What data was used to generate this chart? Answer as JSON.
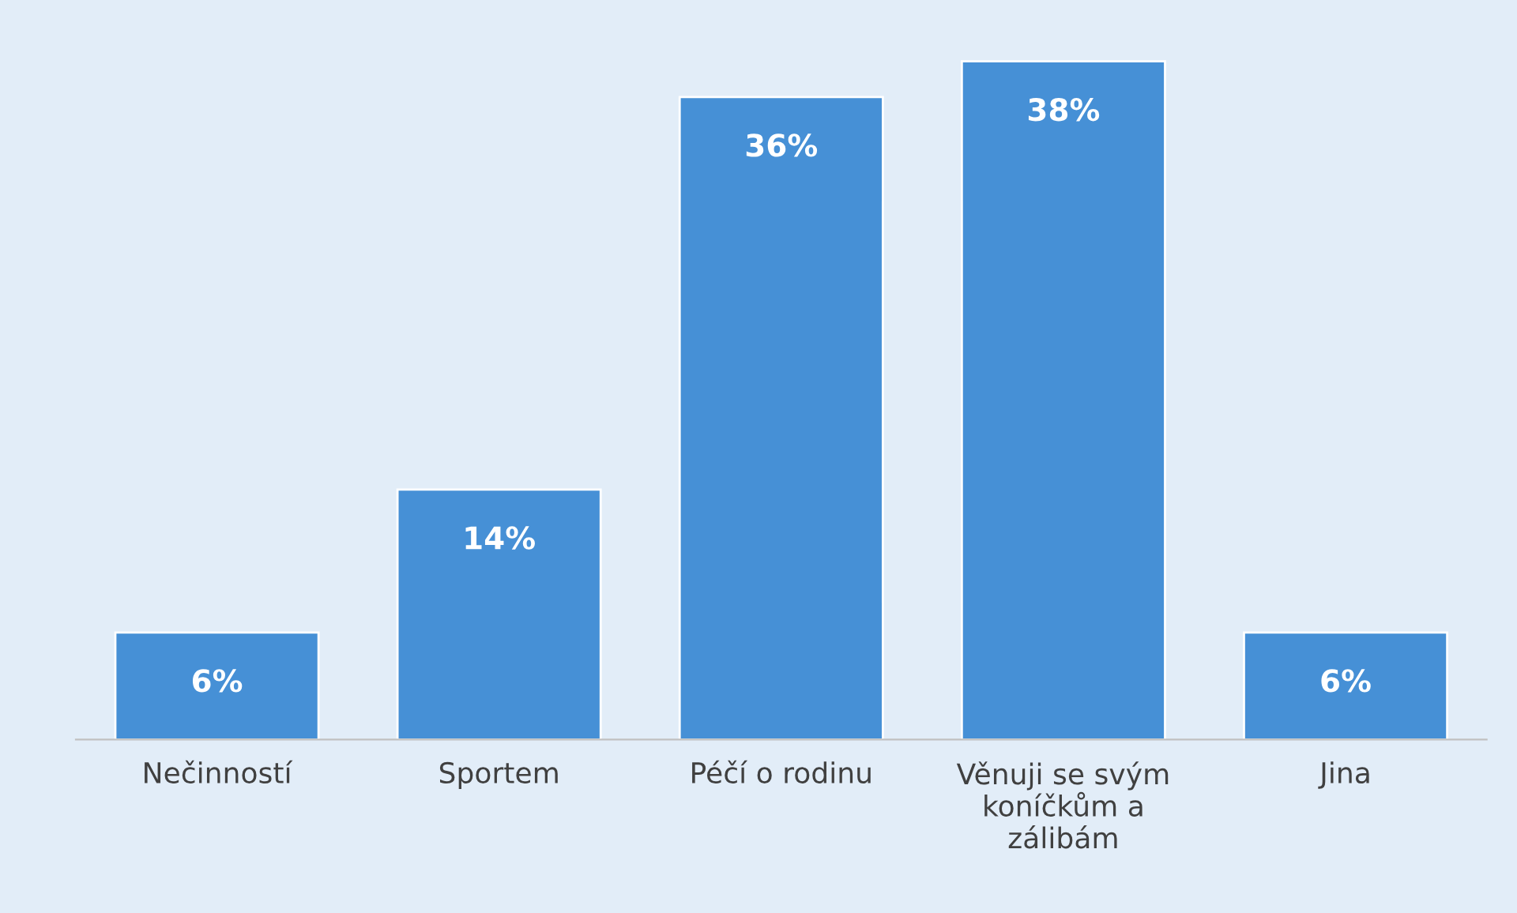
{
  "chart_data": {
    "type": "bar",
    "categories": [
      "Nečinností",
      "Sportem",
      "Péčí o rodinu",
      "Věnuji se svým koníčkům a zálibám",
      "Jina"
    ],
    "values": [
      6,
      14,
      36,
      38,
      6
    ],
    "value_labels": [
      "6%",
      "14%",
      "36%",
      "38%",
      "6%"
    ],
    "color": "#4690d6",
    "grid": false,
    "legend": false
  }
}
